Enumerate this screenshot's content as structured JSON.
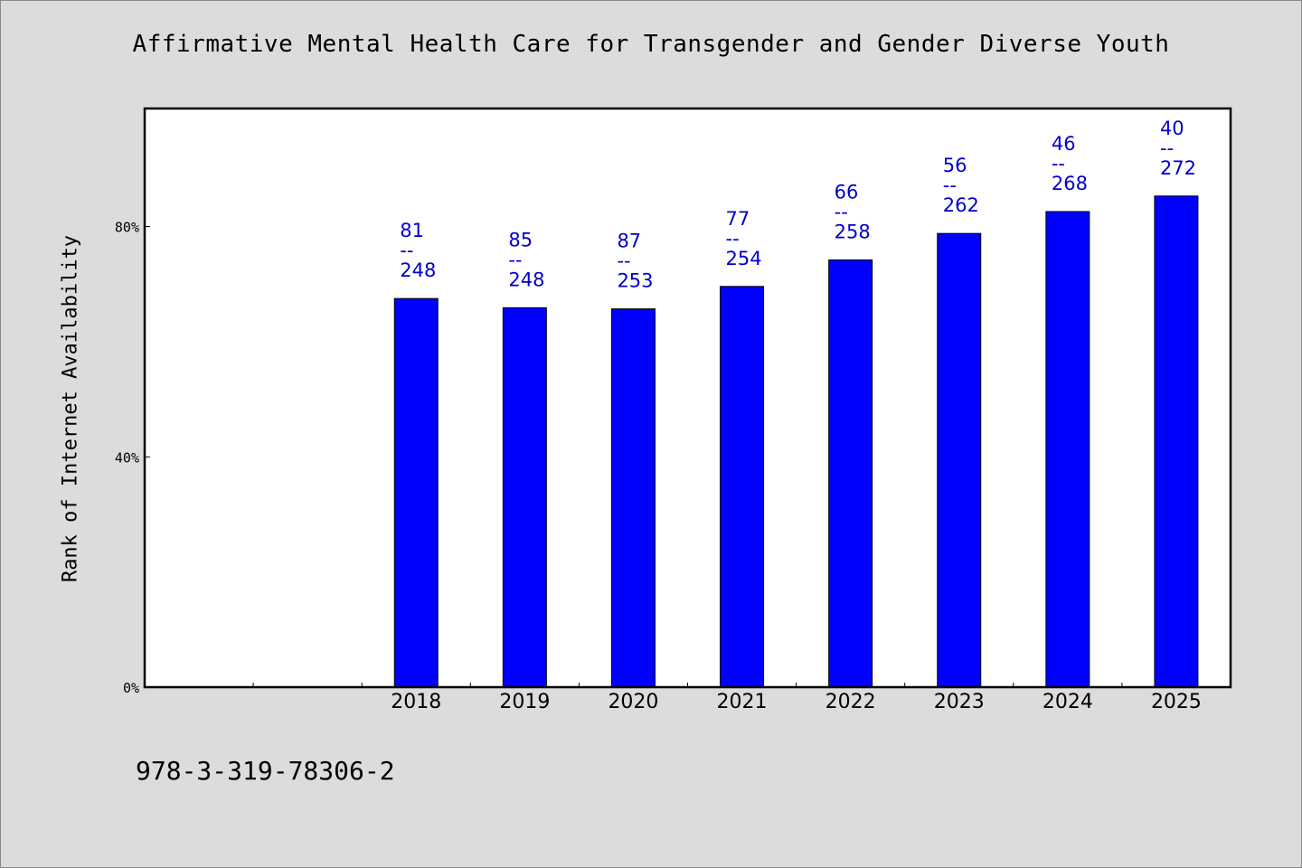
{
  "chart_data": {
    "type": "bar",
    "title": "Affirmative Mental Health Care for Transgender and Gender Diverse Youth",
    "ylabel": "Rank of Internet Availability",
    "xlabel": "",
    "categories": [
      "2018",
      "2019",
      "2020",
      "2021",
      "2022",
      "2023",
      "2024",
      "2025"
    ],
    "values": [
      67.5,
      65.9,
      65.7,
      69.6,
      74.2,
      78.8,
      82.6,
      85.3
    ],
    "value_unit": "%",
    "data_labels": [
      {
        "top": "81",
        "sep": "--",
        "bottom": "248"
      },
      {
        "top": "85",
        "sep": "--",
        "bottom": "248"
      },
      {
        "top": "87",
        "sep": "--",
        "bottom": "253"
      },
      {
        "top": "77",
        "sep": "--",
        "bottom": "254"
      },
      {
        "top": "66",
        "sep": "--",
        "bottom": "258"
      },
      {
        "top": "56",
        "sep": "--",
        "bottom": "262"
      },
      {
        "top": "46",
        "sep": "--",
        "bottom": "268"
      },
      {
        "top": "40",
        "sep": "--",
        "bottom": "272"
      }
    ],
    "yticks": [
      {
        "value": 0,
        "label": "0%"
      },
      {
        "value": 40,
        "label": "40%"
      },
      {
        "value": 80,
        "label": "80%"
      }
    ],
    "ylim": [
      0,
      100.5
    ],
    "x_slots": 10,
    "first_category_slot": 2,
    "grid": false,
    "colors": {
      "bar": "#0000ff",
      "bar_edge": "#000000",
      "label": "#0000cc",
      "background": "#dcdcdc",
      "plot_background": "#ffffff"
    }
  },
  "footer_text": "978-3-319-78306-2"
}
